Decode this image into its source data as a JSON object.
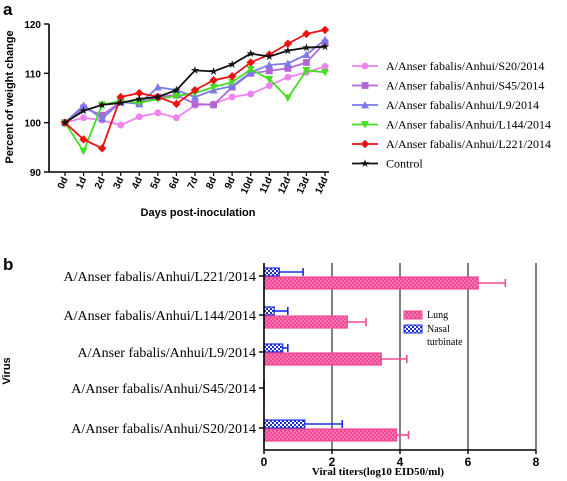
{
  "chart_data": [
    {
      "type": "line",
      "panel_label": "a",
      "title": "",
      "xlabel": "Days post-inoculation",
      "ylabel": "Percent of weight change",
      "x": [
        "0d",
        "1d",
        "2d",
        "3d",
        "4d",
        "5d",
        "6d",
        "7d",
        "8d",
        "9d",
        "10d",
        "11d",
        "12d",
        "13d",
        "14d"
      ],
      "ylim": [
        90,
        120
      ],
      "yticks": [
        "90",
        "100",
        "110",
        "120"
      ],
      "legend_position": "right",
      "series": [
        {
          "name": "A/Anser fabalis/Anhui/S20/2014",
          "color": "#ee82ee",
          "marker": "circle",
          "values": [
            100,
            101,
            100.5,
            99.5,
            101.2,
            102,
            101,
            103.5,
            103.8,
            105.2,
            105.8,
            107.5,
            109.2,
            110.2,
            111.4
          ]
        },
        {
          "name": "A/Anser fabalis/Anhui/S45/2014",
          "color": "#b266d6",
          "marker": "square",
          "values": [
            100,
            103,
            101.5,
            104.2,
            104,
            105.2,
            105.6,
            103.8,
            103.6,
            107.2,
            110,
            110.5,
            111,
            112.2,
            116.2
          ]
        },
        {
          "name": "A/Anser fabalis/Anhui/L9/2014",
          "color": "#7a7aea",
          "marker": "triangle",
          "values": [
            100,
            103.5,
            100.8,
            104.2,
            103.8,
            107.2,
            106.6,
            105.2,
            106.6,
            107.4,
            110.2,
            111.7,
            112,
            113.8,
            116.8
          ]
        },
        {
          "name": "A/Anser fabalis/Anhui/L144/2014",
          "color": "#44dd22",
          "marker": "triangle-down",
          "values": [
            100,
            94.2,
            103.6,
            104.4,
            104,
            104.8,
            105.4,
            106,
            107.2,
            108.2,
            110.8,
            108.8,
            105,
            110.6,
            110.2
          ]
        },
        {
          "name": "A/Anser fabalis/Anhui/L221/2014",
          "color": "#ee1111",
          "marker": "diamond",
          "values": [
            100,
            96.6,
            94.8,
            105.2,
            106,
            105.2,
            103.8,
            106.6,
            108.6,
            109.4,
            112.2,
            113.8,
            116,
            118,
            118.8
          ]
        },
        {
          "name": "Control",
          "color": "#111111",
          "marker": "star",
          "values": [
            100,
            102.4,
            103.6,
            104,
            104.8,
            105.2,
            106.6,
            110.6,
            110.4,
            111.8,
            114,
            113.4,
            114.6,
            115.2,
            115.4
          ]
        }
      ]
    },
    {
      "type": "bar",
      "orientation": "horizontal",
      "panel_label": "b",
      "title": "",
      "xlabel": "Viral titers(log10 EID50/ml)",
      "ylabel": "Virus",
      "xlim": [
        0,
        8
      ],
      "xticks": [
        "0",
        "2",
        "4",
        "6",
        "8"
      ],
      "legend_position": "right",
      "categories": [
        "A/Anser fabalis/Anhui/L221/2014",
        "A/Anser fabalis/Anhui/L144/2014",
        "A/Anser fabalis/Anhui/L9/2014",
        "A/Anser fabalis/Anhui/S45/2014",
        "A/Anser fabalis/Anhui/S20/2014"
      ],
      "series": [
        {
          "name": "Nasal turbinate",
          "color": "#1a2ee0",
          "values": [
            0.45,
            0.3,
            0.55,
            0,
            1.2
          ],
          "errors": [
            0.7,
            0.4,
            0.15,
            0,
            1.1
          ]
        },
        {
          "name": "Lung",
          "color": "#ee4a96",
          "values": [
            6.3,
            2.45,
            3.45,
            0,
            3.9
          ],
          "errors": [
            0.8,
            0.55,
            0.75,
            0,
            0.35
          ]
        }
      ],
      "legend_labels": {
        "lung": "Lung",
        "nasal_line1": "Nasal",
        "nasal_line2": "turbinate"
      }
    }
  ]
}
